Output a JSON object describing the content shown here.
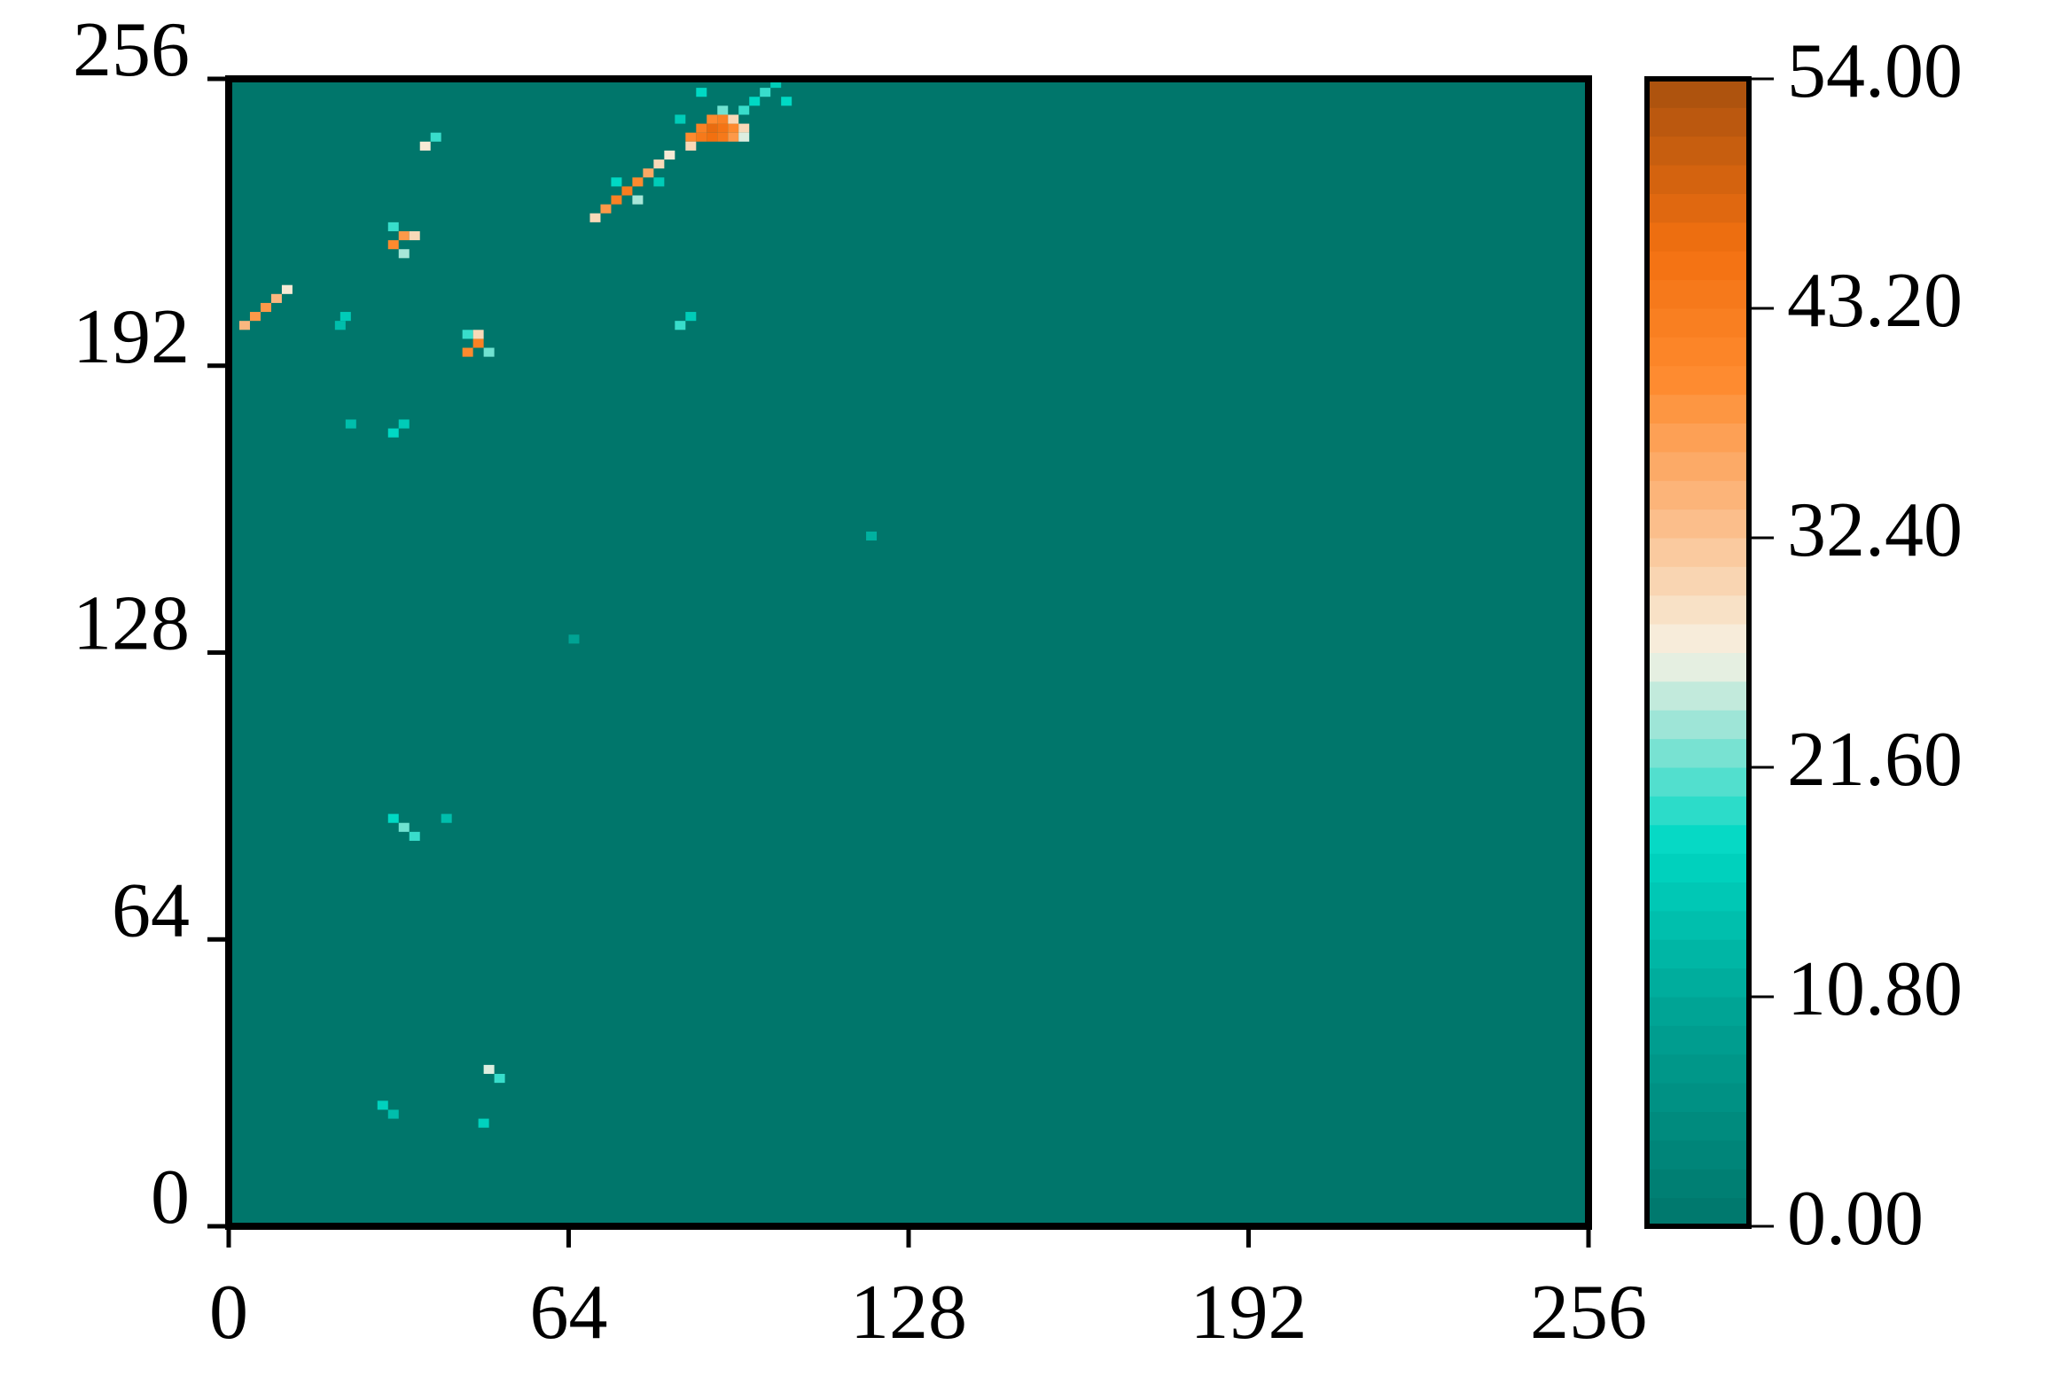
{
  "chart_data": {
    "type": "heatmap",
    "xlim": [
      0,
      256
    ],
    "ylim": [
      0,
      256
    ],
    "xticks": [
      0,
      64,
      128,
      192,
      256
    ],
    "yticks": [
      0,
      64,
      128,
      192,
      256
    ],
    "zlim": [
      0,
      54
    ],
    "zticks": [
      {
        "value": 0,
        "label": "0.00"
      },
      {
        "value": 10.8,
        "label": "10.80"
      },
      {
        "value": 21.6,
        "label": "21.60"
      },
      {
        "value": 32.4,
        "label": "32.40"
      },
      {
        "value": 43.2,
        "label": "43.20"
      },
      {
        "value": 54,
        "label": "54.00"
      }
    ],
    "colormap": [
      [
        0,
        "#00766b"
      ],
      [
        10,
        "#00a394"
      ],
      [
        18,
        "#00d9c4"
      ],
      [
        24,
        "#a8e6d8"
      ],
      [
        27,
        "#f7f2e4"
      ],
      [
        33,
        "#fbbf8c"
      ],
      [
        40,
        "#fe8a2e"
      ],
      [
        46,
        "#f27010"
      ],
      [
        54,
        "#a8500e"
      ]
    ],
    "cell_size": 2,
    "cells": [
      [
        86,
        242,
        40
      ],
      [
        88,
        242,
        44
      ],
      [
        90,
        242,
        46
      ],
      [
        92,
        242,
        44
      ],
      [
        94,
        242,
        38
      ],
      [
        88,
        244,
        42
      ],
      [
        90,
        244,
        47
      ],
      [
        92,
        244,
        45
      ],
      [
        94,
        244,
        40
      ],
      [
        96,
        244,
        30
      ],
      [
        90,
        246,
        40
      ],
      [
        92,
        246,
        42
      ],
      [
        94,
        246,
        30
      ],
      [
        86,
        240,
        30
      ],
      [
        96,
        242,
        26
      ],
      [
        92,
        248,
        22
      ],
      [
        96,
        248,
        20
      ],
      [
        98,
        250,
        18
      ],
      [
        100,
        252,
        20
      ],
      [
        104,
        250,
        18
      ],
      [
        102,
        254,
        16
      ],
      [
        88,
        252,
        18
      ],
      [
        84,
        246,
        16
      ],
      [
        70,
        226,
        38
      ],
      [
        72,
        228,
        42
      ],
      [
        74,
        230,
        43
      ],
      [
        76,
        232,
        40
      ],
      [
        78,
        234,
        36
      ],
      [
        80,
        236,
        30
      ],
      [
        82,
        238,
        28
      ],
      [
        68,
        224,
        30
      ],
      [
        76,
        228,
        24
      ],
      [
        72,
        232,
        18
      ],
      [
        80,
        232,
        16
      ],
      [
        30,
        218,
        40
      ],
      [
        32,
        220,
        38
      ],
      [
        34,
        220,
        30
      ],
      [
        30,
        222,
        20
      ],
      [
        32,
        216,
        24
      ],
      [
        2,
        200,
        34
      ],
      [
        4,
        202,
        38
      ],
      [
        6,
        204,
        38
      ],
      [
        8,
        206,
        34
      ],
      [
        10,
        208,
        28
      ],
      [
        44,
        194,
        40
      ],
      [
        46,
        196,
        42
      ],
      [
        46,
        198,
        30
      ],
      [
        44,
        198,
        20
      ],
      [
        48,
        194,
        22
      ],
      [
        36,
        240,
        28
      ],
      [
        38,
        242,
        20
      ],
      [
        30,
        176,
        18
      ],
      [
        32,
        178,
        16
      ],
      [
        22,
        178,
        14
      ],
      [
        21,
        202,
        16
      ],
      [
        20,
        200,
        14
      ],
      [
        84,
        200,
        20
      ],
      [
        86,
        202,
        16
      ],
      [
        32,
        88,
        22
      ],
      [
        34,
        86,
        20
      ],
      [
        30,
        90,
        18
      ],
      [
        40,
        90,
        14
      ],
      [
        48,
        34,
        26
      ],
      [
        50,
        32,
        20
      ],
      [
        28,
        26,
        17
      ],
      [
        30,
        24,
        14
      ],
      [
        47,
        22,
        17
      ],
      [
        120,
        153,
        12
      ],
      [
        64,
        130,
        10
      ]
    ]
  }
}
